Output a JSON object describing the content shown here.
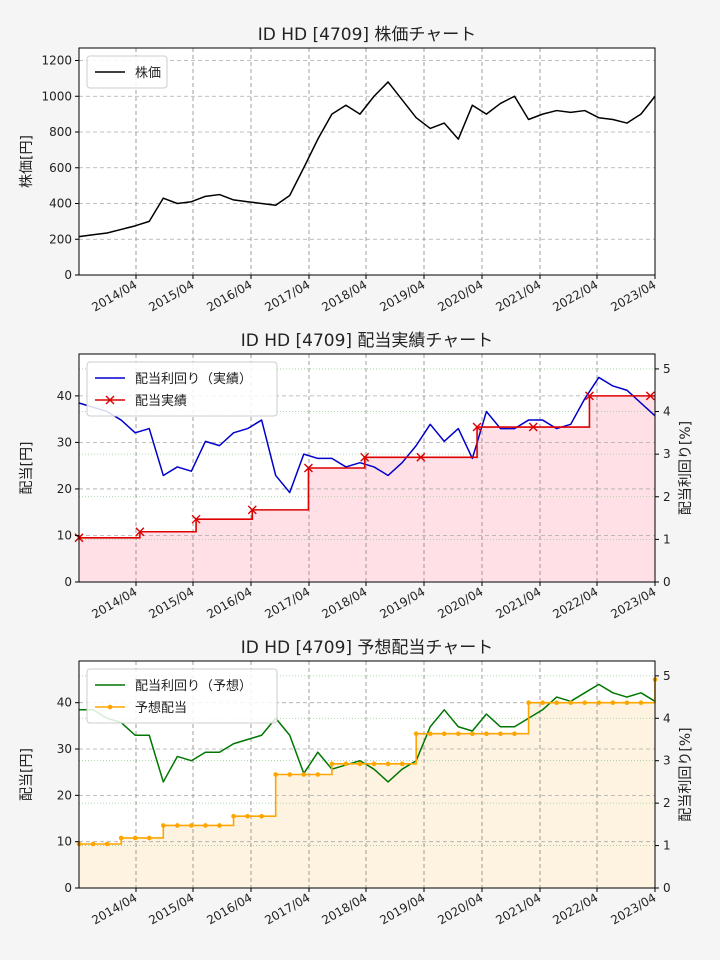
{
  "x_ticks": [
    "2014/04",
    "2015/04",
    "2016/04",
    "2017/04",
    "2018/04",
    "2019/04",
    "2020/04",
    "2021/04",
    "2022/04",
    "2023/04"
  ],
  "chart_data": [
    {
      "type": "line",
      "title": "ID HD [4709]  株価チャート",
      "ylabel": "株価[円]",
      "ylim": [
        0,
        1270
      ],
      "yticks": [
        0,
        200,
        400,
        600,
        800,
        1000,
        1200
      ],
      "xlim": [
        "2013-01",
        "2023-04"
      ],
      "grid": true,
      "legend": {
        "position": "top-left",
        "entries": [
          "株価"
        ]
      },
      "series": [
        {
          "name": "株価",
          "color": "#000000",
          "x": [
            "2013-01",
            "2013-04",
            "2013-07",
            "2013-10",
            "2014-01",
            "2014-04",
            "2014-07",
            "2014-10",
            "2015-01",
            "2015-04",
            "2015-07",
            "2015-10",
            "2016-01",
            "2016-04",
            "2016-07",
            "2016-10",
            "2017-01",
            "2017-04",
            "2017-07",
            "2017-10",
            "2018-01",
            "2018-04",
            "2018-07",
            "2018-10",
            "2019-01",
            "2019-04",
            "2019-07",
            "2019-10",
            "2020-01",
            "2020-04",
            "2020-07",
            "2020-10",
            "2021-01",
            "2021-04",
            "2021-07",
            "2021-10",
            "2022-01",
            "2022-04",
            "2022-07",
            "2022-10",
            "2023-01",
            "2023-04"
          ],
          "y": [
            215,
            225,
            235,
            255,
            275,
            300,
            430,
            400,
            410,
            440,
            450,
            420,
            410,
            400,
            390,
            445,
            600,
            760,
            900,
            950,
            900,
            1000,
            1080,
            980,
            880,
            820,
            850,
            760,
            950,
            900,
            960,
            1000,
            870,
            900,
            920,
            910,
            920,
            880,
            870,
            850,
            900,
            1000
          ]
        }
      ]
    },
    {
      "type": "line",
      "title": "ID HD [4709]  配当実績チャート",
      "ylabel": "配当[円]",
      "ylabel_right": "配当利回り[%]",
      "ylim": [
        0,
        49
      ],
      "yticks": [
        0,
        10,
        20,
        30,
        40
      ],
      "ylim_right": [
        0,
        5.35
      ],
      "yticks_right": [
        0,
        1,
        2,
        3,
        4,
        5
      ],
      "xlim": [
        "2013-01",
        "2023-04"
      ],
      "grid": true,
      "legend": {
        "position": "top-left",
        "entries": [
          "配当利回り（実績）",
          "配当実績"
        ]
      },
      "series": [
        {
          "name": "配当利回り（実績）",
          "axis": "right",
          "color": "#0000cc",
          "x": [
            "2013-01",
            "2013-04",
            "2013-07",
            "2013-10",
            "2014-01",
            "2014-04",
            "2014-07",
            "2014-10",
            "2015-01",
            "2015-04",
            "2015-07",
            "2015-10",
            "2016-01",
            "2016-04",
            "2016-07",
            "2016-10",
            "2017-01",
            "2017-04",
            "2017-07",
            "2017-10",
            "2018-01",
            "2018-04",
            "2018-07",
            "2018-10",
            "2019-01",
            "2019-04",
            "2019-07",
            "2019-10",
            "2020-01",
            "2020-04",
            "2020-07",
            "2020-10",
            "2021-01",
            "2021-04",
            "2021-07",
            "2021-10",
            "2022-01",
            "2022-04",
            "2022-07",
            "2022-10",
            "2023-01",
            "2023-04"
          ],
          "y": [
            4.2,
            4.1,
            4.0,
            3.8,
            3.5,
            3.6,
            2.5,
            2.7,
            2.6,
            3.3,
            3.2,
            3.5,
            3.6,
            3.8,
            2.5,
            2.1,
            3.0,
            2.9,
            2.9,
            2.7,
            2.8,
            2.7,
            2.5,
            2.8,
            3.2,
            3.7,
            3.3,
            3.6,
            2.9,
            4.0,
            3.6,
            3.6,
            3.8,
            3.8,
            3.6,
            3.7,
            4.3,
            4.8,
            4.6,
            4.5,
            4.2,
            3.9
          ]
        },
        {
          "name": "配当実績",
          "axis": "left",
          "color": "#dd0000",
          "step": true,
          "marker": "x",
          "x": [
            "2013-01",
            "2014-02",
            "2015-02",
            "2016-02",
            "2017-02",
            "2018-02",
            "2019-02",
            "2020-02",
            "2021-02",
            "2022-02",
            "2023-03"
          ],
          "y": [
            9.5,
            10.8,
            13.5,
            15.5,
            24.5,
            26.8,
            26.8,
            33.3,
            33.3,
            40,
            40
          ]
        }
      ]
    },
    {
      "type": "line",
      "title": "ID HD [4709]  予想配当チャート",
      "ylabel": "配当[円]",
      "ylabel_right": "配当利回り[%]",
      "ylim": [
        0,
        49
      ],
      "yticks": [
        0,
        10,
        20,
        30,
        40
      ],
      "ylim_right": [
        0,
        5.35
      ],
      "yticks_right": [
        0,
        1,
        2,
        3,
        4,
        5
      ],
      "xlim": [
        "2013-01",
        "2023-04"
      ],
      "grid": true,
      "legend": {
        "position": "top-left",
        "entries": [
          "配当利回り（予想）",
          "予想配当"
        ]
      },
      "series": [
        {
          "name": "配当利回り（予想）",
          "axis": "right",
          "color": "#007700",
          "x": [
            "2013-01",
            "2013-04",
            "2013-07",
            "2013-10",
            "2014-01",
            "2014-04",
            "2014-07",
            "2014-10",
            "2015-01",
            "2015-04",
            "2015-07",
            "2015-10",
            "2016-01",
            "2016-04",
            "2016-07",
            "2016-10",
            "2017-01",
            "2017-04",
            "2017-07",
            "2017-10",
            "2018-01",
            "2018-04",
            "2018-07",
            "2018-10",
            "2019-01",
            "2019-04",
            "2019-07",
            "2019-10",
            "2020-01",
            "2020-04",
            "2020-07",
            "2020-10",
            "2021-01",
            "2021-04",
            "2021-07",
            "2021-10",
            "2022-01",
            "2022-04",
            "2022-07",
            "2022-10",
            "2023-01",
            "2023-04"
          ],
          "y": [
            4.2,
            4.2,
            4.0,
            3.9,
            3.6,
            3.6,
            2.5,
            3.1,
            3.0,
            3.2,
            3.2,
            3.4,
            3.5,
            3.6,
            4.0,
            3.6,
            2.7,
            3.2,
            2.8,
            2.9,
            3.0,
            2.8,
            2.5,
            2.8,
            3.0,
            3.8,
            4.2,
            3.8,
            3.7,
            4.1,
            3.8,
            3.8,
            4.0,
            4.2,
            4.5,
            4.4,
            4.6,
            4.8,
            4.6,
            4.5,
            4.6,
            4.4
          ]
        },
        {
          "name": "予想配当",
          "axis": "left",
          "color": "#ffa500",
          "step": true,
          "marker": "dot",
          "x": [
            "2013-01",
            "2013-04",
            "2013-07",
            "2013-10",
            "2014-01",
            "2014-04",
            "2014-07",
            "2014-10",
            "2015-01",
            "2015-04",
            "2015-07",
            "2015-10",
            "2016-01",
            "2016-04",
            "2016-07",
            "2016-10",
            "2017-01",
            "2017-04",
            "2017-07",
            "2017-10",
            "2018-01",
            "2018-04",
            "2018-07",
            "2018-10",
            "2019-01",
            "2019-04",
            "2019-07",
            "2019-10",
            "2020-01",
            "2020-04",
            "2020-07",
            "2020-10",
            "2021-01",
            "2021-04",
            "2021-07",
            "2021-10",
            "2022-01",
            "2022-04",
            "2022-07",
            "2022-10",
            "2023-01",
            "2023-04"
          ],
          "y": [
            9.5,
            9.5,
            9.5,
            10.8,
            10.8,
            10.8,
            13.5,
            13.5,
            13.5,
            13.5,
            13.5,
            15.5,
            15.5,
            15.5,
            24.5,
            24.5,
            24.5,
            24.5,
            26.8,
            26.8,
            26.8,
            26.8,
            26.8,
            26.8,
            33.3,
            33.3,
            33.3,
            33.3,
            33.3,
            33.3,
            33.3,
            33.3,
            40,
            40,
            40,
            40,
            40,
            40,
            40,
            40,
            40,
            45
          ]
        }
      ]
    }
  ]
}
